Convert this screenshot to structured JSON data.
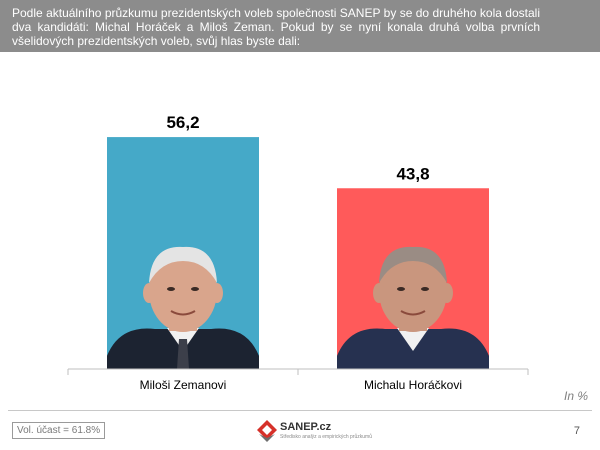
{
  "header": {
    "text": "Podle aktuálního průzkumu prezidentských voleb společnosti SANEP by se do druhého kola dostali dva kandidáti: Michal Horáček a Miloš Zeman. Pokud by se nyní konala druhá volba prvních všelidových prezidentských voleb, svůj hlas byste dali:"
  },
  "chart_data": {
    "type": "bar",
    "categories": [
      "Miloši Zemanovi",
      "Michalu Horáčkovi"
    ],
    "values": [
      56.2,
      43.8
    ],
    "value_labels": [
      "56,2",
      "43,8"
    ],
    "colors": [
      "#45a9c8",
      "#ff5a5a"
    ],
    "ylim": [
      0,
      60
    ],
    "grid": false,
    "unit": "In %"
  },
  "footer": {
    "turnout": "Vol. účast = 61.8%",
    "logo_name": "SANEP.cz",
    "logo_tagline": "Středisko analýz a empirických průzkumů",
    "page_number": "7"
  }
}
